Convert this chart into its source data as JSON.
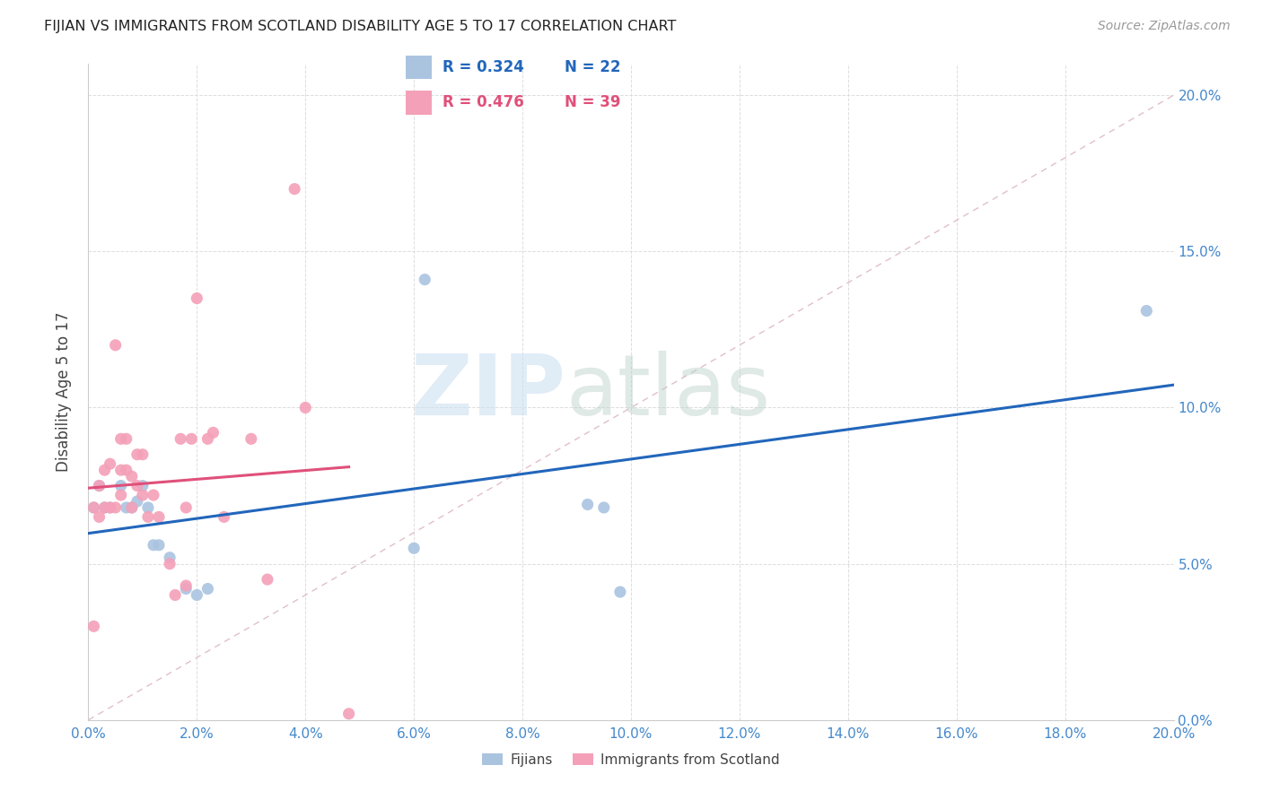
{
  "title": "FIJIAN VS IMMIGRANTS FROM SCOTLAND DISABILITY AGE 5 TO 17 CORRELATION CHART",
  "source": "Source: ZipAtlas.com",
  "ylabel": "Disability Age 5 to 17",
  "xlim": [
    0.0,
    0.2
  ],
  "ylim": [
    0.0,
    0.21
  ],
  "x_ticks": [
    0.0,
    0.02,
    0.04,
    0.06,
    0.08,
    0.1,
    0.12,
    0.14,
    0.16,
    0.18,
    0.2
  ],
  "y_ticks": [
    0.0,
    0.05,
    0.1,
    0.15,
    0.2
  ],
  "fijian_color": "#aac4e0",
  "scotland_color": "#f4a0b8",
  "fijian_line_color": "#2266bb",
  "scotland_line_color": "#e0507a",
  "diagonal_color": "#e0c0c8",
  "right_tick_color": "#4488cc",
  "legend_R_fijian": "R = 0.324",
  "legend_N_fijian": "N = 22",
  "legend_R_scotland": "R = 0.476",
  "legend_N_scotland": "N = 39",
  "watermark_zip": "ZIP",
  "watermark_atlas": "atlas",
  "fijian_x": [
    0.001,
    0.002,
    0.003,
    0.004,
    0.006,
    0.007,
    0.008,
    0.009,
    0.01,
    0.011,
    0.012,
    0.013,
    0.015,
    0.018,
    0.02,
    0.022,
    0.06,
    0.062,
    0.092,
    0.095,
    0.098,
    0.195
  ],
  "fijian_y": [
    0.068,
    0.075,
    0.068,
    0.068,
    0.075,
    0.068,
    0.068,
    0.07,
    0.075,
    0.068,
    0.056,
    0.056,
    0.052,
    0.042,
    0.04,
    0.042,
    0.055,
    0.141,
    0.069,
    0.068,
    0.041,
    0.131
  ],
  "scotland_x": [
    0.001,
    0.001,
    0.002,
    0.002,
    0.003,
    0.003,
    0.004,
    0.004,
    0.005,
    0.005,
    0.006,
    0.006,
    0.006,
    0.007,
    0.007,
    0.008,
    0.008,
    0.009,
    0.009,
    0.01,
    0.01,
    0.011,
    0.012,
    0.013,
    0.015,
    0.016,
    0.017,
    0.018,
    0.018,
    0.019,
    0.02,
    0.022,
    0.023,
    0.025,
    0.03,
    0.033,
    0.038,
    0.04,
    0.048
  ],
  "scotland_y": [
    0.03,
    0.068,
    0.065,
    0.075,
    0.068,
    0.08,
    0.082,
    0.068,
    0.12,
    0.068,
    0.072,
    0.08,
    0.09,
    0.08,
    0.09,
    0.068,
    0.078,
    0.075,
    0.085,
    0.072,
    0.085,
    0.065,
    0.072,
    0.065,
    0.05,
    0.04,
    0.09,
    0.043,
    0.068,
    0.09,
    0.135,
    0.09,
    0.092,
    0.065,
    0.09,
    0.045,
    0.17,
    0.1,
    0.002
  ]
}
